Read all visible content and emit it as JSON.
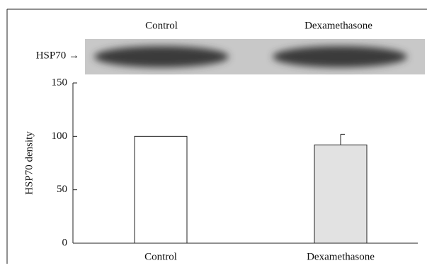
{
  "chart_data": {
    "type": "bar",
    "blot": {
      "label": "HSP70 →",
      "lanes": [
        "Control",
        "Dexamethasone"
      ]
    },
    "ylabel": "HSP70 density",
    "categories": [
      "Control",
      "Dexamethasone"
    ],
    "values": [
      100,
      92
    ],
    "errors": [
      null,
      10
    ],
    "colors": [
      "#ffffff",
      "#e2e2e2"
    ],
    "ylim": [
      0,
      150
    ],
    "yticks": [
      0,
      50,
      100,
      150
    ]
  }
}
